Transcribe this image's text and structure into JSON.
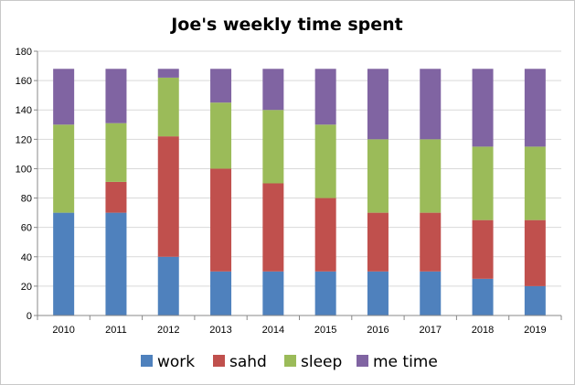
{
  "chart_data": {
    "type": "bar",
    "stacked": true,
    "title": "Joe's weekly time spent",
    "xlabel": "",
    "ylabel": "",
    "ylim": [
      0,
      180
    ],
    "yticks": [
      0,
      20,
      40,
      60,
      80,
      100,
      120,
      140,
      160,
      180
    ],
    "grid": true,
    "legend_position": "bottom",
    "categories": [
      "2010",
      "2011",
      "2012",
      "2013",
      "2014",
      "2015",
      "2016",
      "2017",
      "2018",
      "2019"
    ],
    "series": [
      {
        "name": "work",
        "color": "#4f81bd",
        "values": [
          70,
          70,
          40,
          30,
          30,
          30,
          30,
          30,
          25,
          20
        ]
      },
      {
        "name": "sahd",
        "color": "#c0504d",
        "values": [
          0,
          21,
          82,
          70,
          60,
          50,
          40,
          40,
          40,
          45
        ]
      },
      {
        "name": "sleep",
        "color": "#9bbb59",
        "values": [
          60,
          40,
          40,
          45,
          50,
          50,
          50,
          50,
          50,
          50
        ]
      },
      {
        "name": "me time",
        "color": "#8064a2",
        "values": [
          38,
          37,
          6,
          23,
          28,
          38,
          48,
          48,
          53,
          53
        ]
      }
    ]
  }
}
